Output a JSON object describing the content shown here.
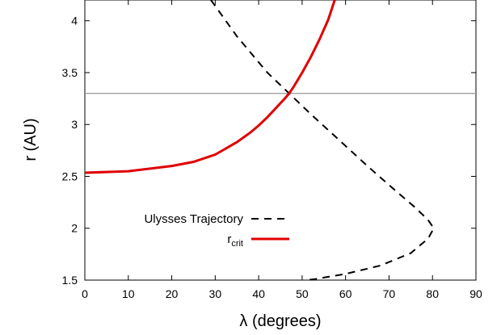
{
  "chart_data": {
    "type": "line",
    "title": "",
    "xlabel": "λ (degrees)",
    "ylabel": "r (AU)",
    "xlim": [
      0,
      90
    ],
    "ylim": [
      1.5,
      4.2
    ],
    "xticks": [
      0,
      10,
      20,
      30,
      40,
      50,
      60,
      70,
      80,
      90
    ],
    "yticks": [
      1.5,
      2,
      2.5,
      3,
      3.5,
      4
    ],
    "ytick_labels": [
      "1.5",
      "2",
      "2.5",
      "3",
      "3.5",
      "4"
    ],
    "grid": false,
    "legend_position": "bottom-left",
    "reference_line": {
      "y": 3.3,
      "color": "#a0a0a0"
    },
    "series": [
      {
        "name": "Ulysses Trajectory",
        "style": "dashed",
        "color": "#000000",
        "points": [
          [
            29,
            4.2
          ],
          [
            35,
            3.85
          ],
          [
            42,
            3.5
          ],
          [
            47,
            3.3
          ],
          [
            52,
            3.1
          ],
          [
            58,
            2.87
          ],
          [
            65,
            2.6
          ],
          [
            71,
            2.38
          ],
          [
            76,
            2.2
          ],
          [
            79,
            2.08
          ],
          [
            80.3,
            2.0
          ],
          [
            79,
            1.9
          ],
          [
            75,
            1.76
          ],
          [
            68,
            1.64
          ],
          [
            60,
            1.56
          ],
          [
            53,
            1.51
          ],
          [
            49,
            1.49
          ]
        ]
      },
      {
        "name": "r",
        "name_subscript": "crit",
        "style": "solid",
        "color": "#e00000",
        "points": [
          [
            0,
            2.535
          ],
          [
            10,
            2.55
          ],
          [
            20,
            2.6
          ],
          [
            25,
            2.64
          ],
          [
            30,
            2.71
          ],
          [
            35,
            2.83
          ],
          [
            38,
            2.92
          ],
          [
            40,
            2.99
          ],
          [
            42,
            3.07
          ],
          [
            44,
            3.16
          ],
          [
            46,
            3.25
          ],
          [
            47,
            3.3
          ],
          [
            48,
            3.36
          ],
          [
            50,
            3.5
          ],
          [
            52,
            3.65
          ],
          [
            54,
            3.82
          ],
          [
            56,
            4.01
          ],
          [
            57.5,
            4.2
          ]
        ]
      }
    ]
  }
}
